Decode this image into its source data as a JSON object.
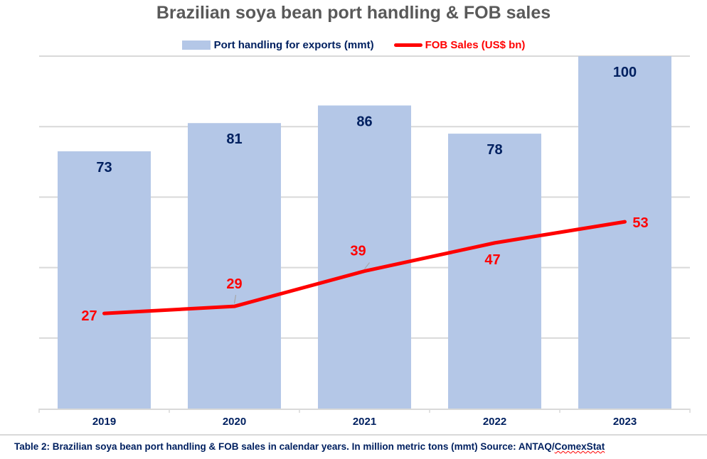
{
  "chart_data": {
    "type": "bar",
    "title": "Brazilian soya bean port handling & FOB sales",
    "categories": [
      "2019",
      "2020",
      "2021",
      "2022",
      "2023"
    ],
    "series": [
      {
        "name": "Port handling for exports (mmt)",
        "kind": "bar",
        "values": [
          73,
          81,
          86,
          78,
          100
        ],
        "color": "#b4c7e7",
        "label_color": "#002060"
      },
      {
        "name": "FOB Sales (US$ bn)",
        "kind": "line",
        "values": [
          27,
          29,
          39,
          47,
          53
        ],
        "color": "#ff0000",
        "label_color": "#ff0000"
      }
    ],
    "xlabel": "",
    "ylabel": "",
    "ylim": [
      0,
      100
    ],
    "grid": true,
    "legend": "top-center"
  },
  "caption": {
    "main": "Table 2: Brazilian soya bean port handling & FOB sales in calendar years. In million metric tons (mmt) Source: ANTAQ/",
    "source_tail": "ComexStat"
  }
}
